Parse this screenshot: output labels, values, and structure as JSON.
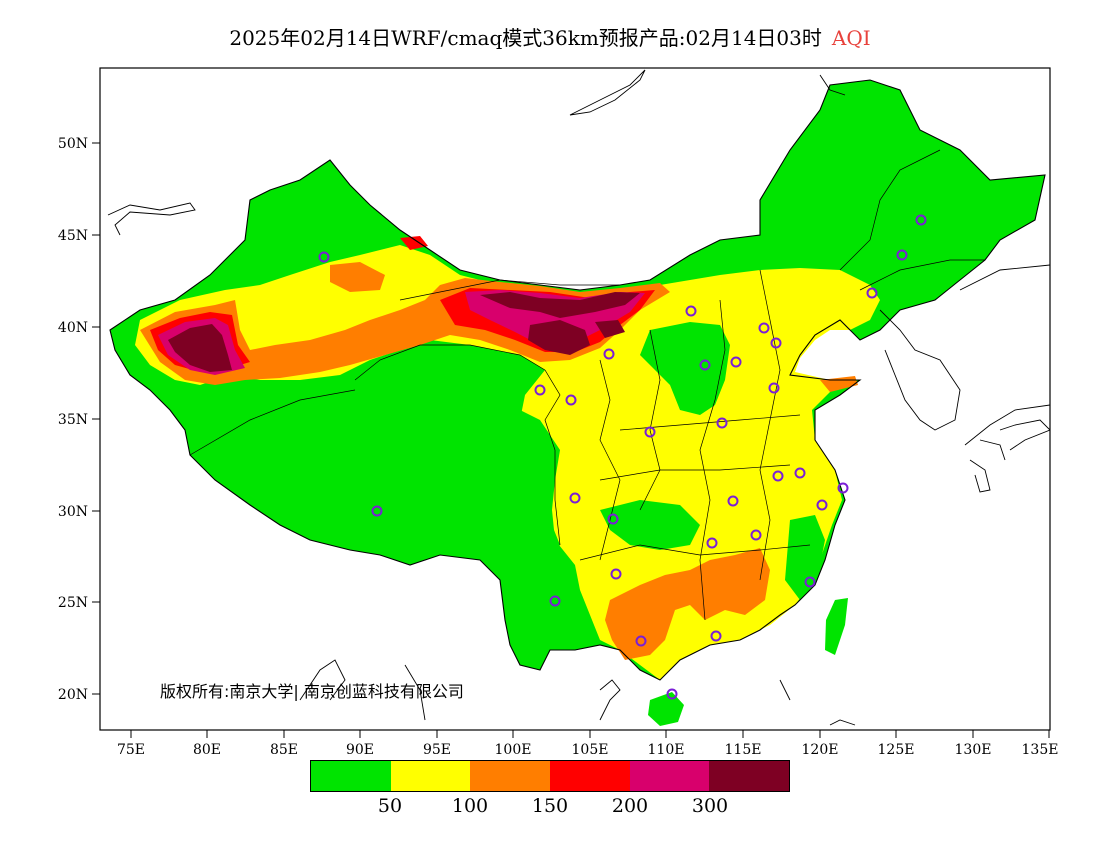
{
  "title": {
    "main": "2025年02月14日WRF/cmaq模式36km预报产品:02月14日03时",
    "variable": "AQI"
  },
  "axes": {
    "lat_labels": [
      "50N",
      "45N",
      "40N",
      "35N",
      "30N",
      "25N",
      "20N"
    ],
    "lon_labels": [
      "75E",
      "80E",
      "85E",
      "90E",
      "95E",
      "100E",
      "105E",
      "110E",
      "115E",
      "120E",
      "125E",
      "130E",
      "135E"
    ]
  },
  "credit": "版权所有:南京大学| 南京创蓝科技有限公司",
  "legend": {
    "colors": [
      "#00e400",
      "#ffff00",
      "#ff7e00",
      "#ff0000",
      "#d8006c",
      "#7e0023"
    ],
    "labels": [
      "50",
      "100",
      "150",
      "200",
      "300"
    ]
  },
  "stations": {
    "marker": "circle",
    "color": "#7a1fd6"
  }
}
